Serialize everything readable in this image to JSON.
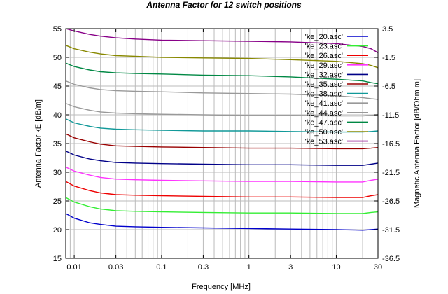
{
  "chart_data": {
    "type": "line",
    "title": "Antenna Factor for 12 switch positions",
    "xlabel": "Frequency [MHz]",
    "ylabel": "Antenna Factor kE [dB/m]",
    "y2label": "Magnetic Antenna Factor [dB/Ohm m]",
    "xscale": "log",
    "xlim": [
      0.008,
      30
    ],
    "ylim": [
      15,
      55
    ],
    "y2lim": [
      -36.5,
      3.5
    ],
    "grid": true,
    "legend_position": "top-right",
    "x_ticks": [
      0.01,
      0.03,
      0.1,
      0.3,
      1,
      3,
      10,
      30
    ],
    "x_tick_labels": [
      "0.01",
      "0.03",
      "0.1",
      "0.3",
      "1",
      "3",
      "10",
      "30"
    ],
    "y_ticks": [
      15,
      20,
      25,
      30,
      35,
      40,
      45,
      50,
      55
    ],
    "y_tick_labels": [
      "15",
      "20",
      "25",
      "30",
      "35",
      "40",
      "45",
      "50",
      "55"
    ],
    "y2_ticks": [
      -36.5,
      -31.5,
      -26.5,
      -21.5,
      -16.5,
      -11.5,
      -6.5,
      -1.5,
      3.5
    ],
    "y2_tick_labels": [
      "-36.5",
      "-31.5",
      "-26.5",
      "-21.5",
      "-16.5",
      "-11.5",
      "-6.5",
      "-1.5",
      "3.5"
    ],
    "x": [
      0.008,
      0.01,
      0.015,
      0.02,
      0.03,
      0.05,
      0.1,
      0.3,
      1,
      3,
      10,
      20,
      25,
      30
    ],
    "series": [
      {
        "name": "'ke_20.asc'",
        "color": "#0000cc",
        "values": [
          22.8,
          22.0,
          21.2,
          20.9,
          20.6,
          20.5,
          20.4,
          20.3,
          20.2,
          20.1,
          20.0,
          19.9,
          20.0,
          20.1
        ]
      },
      {
        "name": "'ke_23.asc'",
        "color": "#33ee33",
        "values": [
          25.6,
          24.8,
          24.0,
          23.6,
          23.3,
          23.2,
          23.1,
          23.0,
          22.9,
          22.9,
          22.8,
          22.8,
          23.0,
          23.1
        ]
      },
      {
        "name": "'ke_26.asc'",
        "color": "#ee0000",
        "values": [
          28.4,
          27.6,
          26.8,
          26.4,
          26.1,
          26.0,
          25.9,
          25.8,
          25.7,
          25.7,
          25.6,
          25.6,
          25.9,
          26.1
        ]
      },
      {
        "name": "'ke_29.asc'",
        "color": "#ff33ff",
        "values": [
          30.9,
          30.2,
          29.5,
          29.1,
          28.8,
          28.7,
          28.6,
          28.5,
          28.4,
          28.4,
          28.3,
          28.3,
          28.6,
          28.8
        ]
      },
      {
        "name": "'ke_32.asc'",
        "color": "#000088",
        "values": [
          33.7,
          33.0,
          32.3,
          32.0,
          31.7,
          31.6,
          31.5,
          31.4,
          31.3,
          31.3,
          31.2,
          31.2,
          31.4,
          31.6
        ]
      },
      {
        "name": "'ke_35.asc'",
        "color": "#990000",
        "values": [
          36.7,
          36.0,
          35.3,
          34.9,
          34.6,
          34.5,
          34.4,
          34.3,
          34.2,
          34.2,
          34.1,
          34.1,
          34.2,
          34.3
        ]
      },
      {
        "name": "'ke_38.asc'",
        "color": "#119999",
        "values": [
          39.3,
          38.6,
          38.0,
          37.7,
          37.5,
          37.4,
          37.3,
          37.2,
          37.2,
          37.1,
          37.0,
          37.0,
          37.1,
          37.2
        ]
      },
      {
        "name": "'ke_41.asc'",
        "color": "#999999",
        "values": [
          42.0,
          41.4,
          40.8,
          40.5,
          40.3,
          40.2,
          40.1,
          40.0,
          39.9,
          39.9,
          39.8,
          39.8,
          39.9,
          40.0
        ]
      },
      {
        "name": "'ke_44.asc'",
        "color": "#999999",
        "values": [
          45.9,
          45.3,
          44.7,
          44.4,
          44.2,
          44.1,
          44.0,
          43.8,
          43.7,
          43.6,
          43.3,
          43.0,
          42.8,
          42.7
        ]
      },
      {
        "name": "'ke_47.asc'",
        "color": "#008844",
        "values": [
          49.0,
          48.4,
          47.8,
          47.5,
          47.3,
          47.2,
          47.1,
          46.9,
          46.8,
          46.6,
          46.2,
          45.9,
          45.6,
          45.4
        ]
      },
      {
        "name": "'ke_50.asc'",
        "color": "#888800",
        "values": [
          52.1,
          51.5,
          50.9,
          50.6,
          50.3,
          50.2,
          50.0,
          49.9,
          49.8,
          49.6,
          49.3,
          48.9,
          48.6,
          48.2
        ]
      },
      {
        "name": "'ke_53.asc'",
        "color": "#880088",
        "values": [
          55.0,
          54.6,
          54.0,
          53.7,
          53.4,
          53.2,
          53.0,
          52.9,
          52.8,
          52.7,
          52.4,
          51.9,
          51.5,
          50.8
        ]
      }
    ]
  }
}
